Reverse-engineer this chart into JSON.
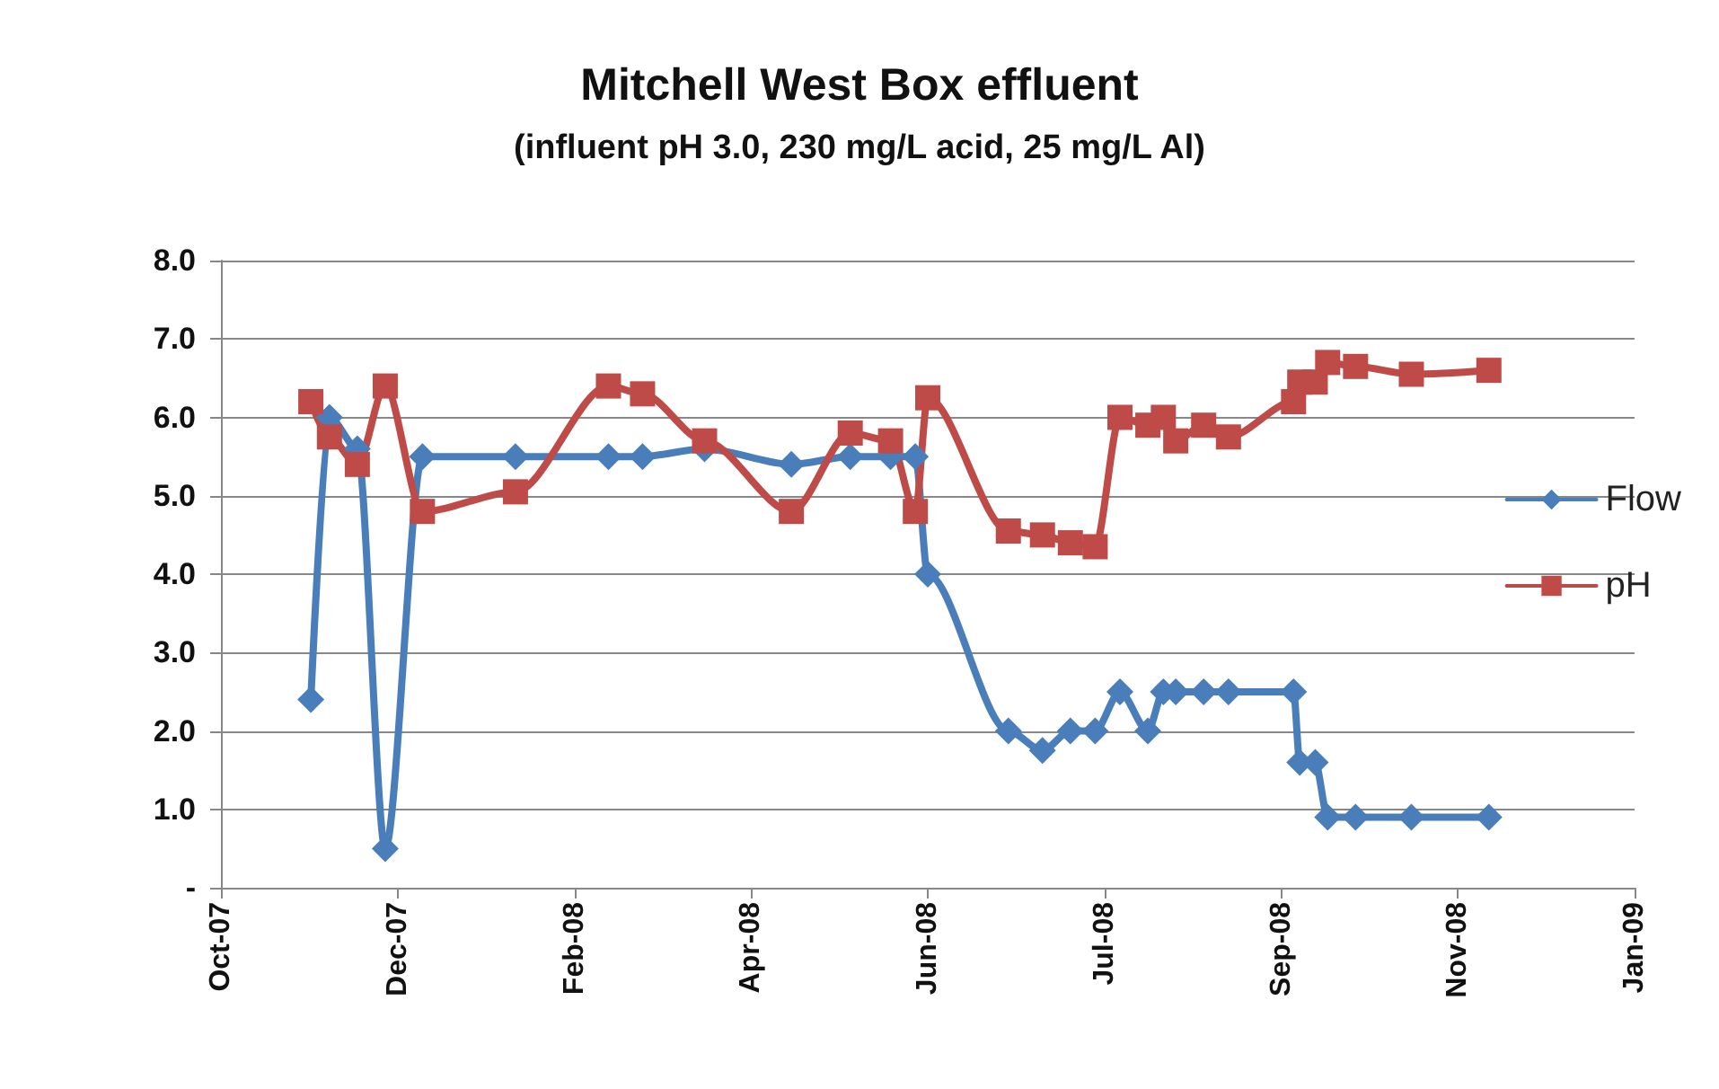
{
  "chart_data": {
    "type": "line",
    "title": "Mitchell West Box effluent",
    "subtitle": "(influent pH 3.0, 230 mg/L acid, 25 mg/L Al)",
    "x": [
      "2007-11-16",
      "2007-11-22",
      "2007-12-01",
      "2007-12-10",
      "2007-12-22",
      "2008-01-21",
      "2008-02-20",
      "2008-03-02",
      "2008-03-22",
      "2008-04-19",
      "2008-05-08",
      "2008-05-21",
      "2008-05-29",
      "2008-06-02",
      "2008-06-28",
      "2008-07-09",
      "2008-07-18",
      "2008-07-26",
      "2008-08-03",
      "2008-08-12",
      "2008-08-17",
      "2008-08-21",
      "2008-08-30",
      "2008-09-07",
      "2008-09-28",
      "2008-09-30",
      "2008-10-05",
      "2008-10-09",
      "2008-10-18",
      "2008-11-05",
      "2008-11-30"
    ],
    "series": [
      {
        "name": "Flow",
        "color": "#4a7ebb",
        "marker": "diamond",
        "values": [
          2.4,
          6.0,
          5.6,
          0.5,
          5.5,
          5.5,
          5.5,
          5.5,
          5.6,
          5.4,
          5.5,
          5.5,
          5.5,
          4.0,
          2.0,
          1.75,
          2.0,
          2.0,
          2.5,
          2.0,
          2.5,
          2.5,
          2.5,
          2.5,
          2.5,
          1.6,
          1.6,
          0.9,
          0.9,
          0.9,
          0.9
        ]
      },
      {
        "name": "pH",
        "color": "#be4b48",
        "marker": "square",
        "values": [
          6.2,
          5.75,
          5.4,
          6.4,
          4.8,
          5.05,
          6.4,
          6.3,
          5.7,
          4.8,
          5.8,
          5.7,
          4.8,
          6.25,
          4.55,
          4.5,
          4.4,
          4.35,
          6.0,
          5.9,
          6.0,
          5.7,
          5.9,
          5.75,
          6.2,
          6.45,
          6.45,
          6.7,
          6.65,
          6.55,
          6.6
        ]
      }
    ],
    "xlim": [
      "2007-10-18",
      "2009-01-16"
    ],
    "xticks": [
      {
        "value": "2007-10-18",
        "label": "Oct-07"
      },
      {
        "value": "2007-12-14",
        "label": "Dec-07"
      },
      {
        "value": "2008-02-09",
        "label": "Feb-08"
      },
      {
        "value": "2008-04-06",
        "label": "Apr-08"
      },
      {
        "value": "2008-06-02",
        "label": "Jun-08"
      },
      {
        "value": "2008-07-29",
        "label": "Jul-08"
      },
      {
        "value": "2008-09-24",
        "label": "Sep-08"
      },
      {
        "value": "2008-11-20",
        "label": "Nov-08"
      },
      {
        "value": "2009-01-16",
        "label": "Jan-09"
      }
    ],
    "ylim": [
      0,
      8
    ],
    "yticks": [
      {
        "value": 0,
        "label": "-"
      },
      {
        "value": 1,
        "label": "1.0"
      },
      {
        "value": 2,
        "label": "2.0"
      },
      {
        "value": 3,
        "label": "3.0"
      },
      {
        "value": 4,
        "label": "4.0"
      },
      {
        "value": 5,
        "label": "5.0"
      },
      {
        "value": 6,
        "label": "6.0"
      },
      {
        "value": 7,
        "label": "7.0"
      },
      {
        "value": 8,
        "label": "8.0"
      }
    ],
    "grid": "y",
    "legend": "right",
    "line_style": "solid"
  }
}
